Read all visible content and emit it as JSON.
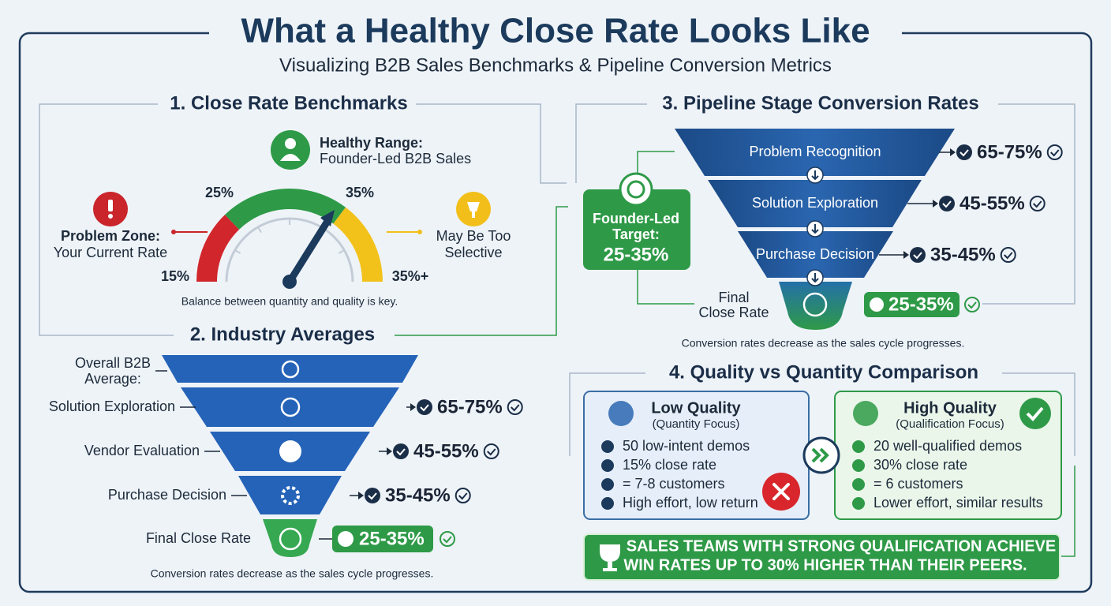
{
  "header": {
    "title": "What a Healthy Close Rate Looks Like",
    "subtitle": "Visualizing B2B Sales Benchmarks & Pipeline Conversion Metrics"
  },
  "benchmarks": {
    "title": "1. Close Rate Benchmarks",
    "healthy": {
      "title": "Healthy Range:",
      "subtitle": "Founder-Led B2B Sales"
    },
    "problem": {
      "title": "Problem Zone:",
      "subtitle": "Your Current Rate"
    },
    "selective": [
      "May Be Too",
      "Selective"
    ],
    "gauge_labels": [
      "15%",
      "25%",
      "35%",
      "35%+"
    ],
    "note": "Balance between quantity and quality is key."
  },
  "industry": {
    "title": "2. Industry Averages",
    "overall": [
      "Overall B2B",
      "Average:"
    ],
    "stages": [
      {
        "label": "Solution Exploration",
        "rate": "65-75%"
      },
      {
        "label": "Vendor Evaluation",
        "rate": "45-55%"
      },
      {
        "label": "Purchase Decision",
        "rate": "35-45%"
      }
    ],
    "final": {
      "label": "Final Close Rate",
      "rate": "25-35%"
    },
    "note": "Conversion rates decrease as the sales cycle progresses."
  },
  "pipeline": {
    "title": "3. Pipeline Stage Conversion Rates",
    "target": {
      "label": [
        "Founder-Led",
        "Target:"
      ],
      "value": "25-35%"
    },
    "stages": [
      {
        "label": "Problem Recognition",
        "rate": "65-75%"
      },
      {
        "label": "Solution Exploration",
        "rate": "45-55%"
      },
      {
        "label": "Purchase Decision",
        "rate": "35-45%"
      }
    ],
    "final": {
      "label": [
        "Final",
        "Close Rate"
      ],
      "rate": "25-35%"
    },
    "note": "Conversion rates decrease as the sales cycle progresses."
  },
  "comparison": {
    "title": "4. Quality vs Quantity Comparison",
    "low": {
      "title": "Low Quality",
      "subtitle": "(Quantity Focus)",
      "items": [
        "50 low-intent demos",
        "15% close rate",
        "= 7-8 customers",
        "High effort, low return"
      ]
    },
    "high": {
      "title": "High Quality",
      "subtitle": "(Qualification Focus)",
      "items": [
        "20 well-qualified demos",
        "30% close rate",
        "= 6 customers",
        "Lower effort, similar results"
      ]
    },
    "banner": [
      "SALES TEAMS WITH STRONG QUALIFICATION ACHIEVE",
      "WIN RATES UP TO 30% HIGHER THAN THEIR PEERS."
    ]
  }
}
